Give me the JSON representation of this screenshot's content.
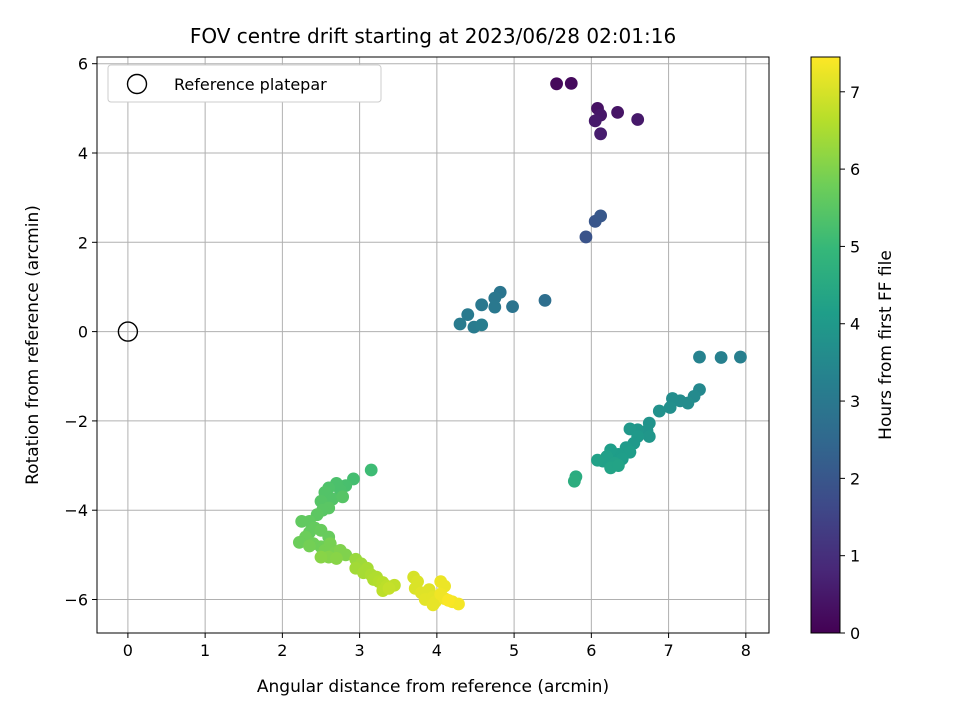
{
  "chart_data": {
    "type": "scatter",
    "title": "FOV centre drift starting at 2023/06/28 02:01:16",
    "xlabel": "Angular distance from reference (arcmin)",
    "ylabel": "Rotation from reference (arcmin)",
    "xlim": [
      -0.4,
      8.3
    ],
    "ylim": [
      -6.75,
      6.15
    ],
    "xticks": [
      0,
      1,
      2,
      3,
      4,
      5,
      6,
      7,
      8
    ],
    "yticks": [
      -6,
      -4,
      -2,
      0,
      2,
      4,
      6
    ],
    "grid": true,
    "legend": {
      "position": "top-left",
      "entries": [
        "Reference platepar"
      ]
    },
    "reference_point": {
      "x": 0,
      "y": 0
    },
    "colorbar": {
      "label": "Hours from first FF file",
      "colormap": "viridis",
      "range": [
        0,
        7.45
      ],
      "ticks": [
        0,
        1,
        2,
        3,
        4,
        5,
        6,
        7
      ]
    },
    "points": [
      {
        "x": 5.55,
        "y": 5.55,
        "t": 0.15
      },
      {
        "x": 5.74,
        "y": 5.56,
        "t": 0.2
      },
      {
        "x": 6.08,
        "y": 5.0,
        "t": 0.35
      },
      {
        "x": 6.34,
        "y": 4.91,
        "t": 0.4
      },
      {
        "x": 6.12,
        "y": 4.85,
        "t": 0.45
      },
      {
        "x": 6.05,
        "y": 4.72,
        "t": 0.5
      },
      {
        "x": 6.6,
        "y": 4.75,
        "t": 0.5
      },
      {
        "x": 6.12,
        "y": 4.43,
        "t": 0.6
      },
      {
        "x": 5.93,
        "y": 2.12,
        "t": 1.9
      },
      {
        "x": 6.05,
        "y": 2.47,
        "t": 2.0
      },
      {
        "x": 6.12,
        "y": 2.59,
        "t": 2.05
      },
      {
        "x": 5.4,
        "y": 0.7,
        "t": 2.7
      },
      {
        "x": 4.98,
        "y": 0.56,
        "t": 2.85
      },
      {
        "x": 4.82,
        "y": 0.88,
        "t": 2.9
      },
      {
        "x": 4.75,
        "y": 0.75,
        "t": 2.95
      },
      {
        "x": 4.58,
        "y": 0.6,
        "t": 3.0
      },
      {
        "x": 4.75,
        "y": 0.55,
        "t": 3.0
      },
      {
        "x": 4.4,
        "y": 0.38,
        "t": 3.05
      },
      {
        "x": 4.3,
        "y": 0.17,
        "t": 3.1
      },
      {
        "x": 4.48,
        "y": 0.1,
        "t": 3.1
      },
      {
        "x": 4.58,
        "y": 0.15,
        "t": 3.15
      },
      {
        "x": 7.93,
        "y": -0.57,
        "t": 3.2
      },
      {
        "x": 7.68,
        "y": -0.58,
        "t": 3.25
      },
      {
        "x": 7.4,
        "y": -0.57,
        "t": 3.3
      },
      {
        "x": 7.4,
        "y": -1.3,
        "t": 3.5
      },
      {
        "x": 7.33,
        "y": -1.45,
        "t": 3.55
      },
      {
        "x": 7.25,
        "y": -1.6,
        "t": 3.6
      },
      {
        "x": 7.15,
        "y": -1.55,
        "t": 3.6
      },
      {
        "x": 7.05,
        "y": -1.5,
        "t": 3.65
      },
      {
        "x": 7.02,
        "y": -1.7,
        "t": 3.7
      },
      {
        "x": 6.88,
        "y": -1.78,
        "t": 3.75
      },
      {
        "x": 6.75,
        "y": -2.05,
        "t": 3.8
      },
      {
        "x": 6.72,
        "y": -2.22,
        "t": 3.85
      },
      {
        "x": 6.75,
        "y": -2.35,
        "t": 3.9
      },
      {
        "x": 6.6,
        "y": -2.2,
        "t": 3.9
      },
      {
        "x": 6.5,
        "y": -2.18,
        "t": 3.95
      },
      {
        "x": 6.6,
        "y": -2.35,
        "t": 4.0
      },
      {
        "x": 6.55,
        "y": -2.5,
        "t": 4.0
      },
      {
        "x": 6.45,
        "y": -2.6,
        "t": 4.05
      },
      {
        "x": 6.5,
        "y": -2.7,
        "t": 4.1
      },
      {
        "x": 6.35,
        "y": -2.75,
        "t": 4.1
      },
      {
        "x": 6.4,
        "y": -2.85,
        "t": 4.15
      },
      {
        "x": 6.25,
        "y": -2.65,
        "t": 4.15
      },
      {
        "x": 6.2,
        "y": -2.8,
        "t": 4.2
      },
      {
        "x": 6.15,
        "y": -2.9,
        "t": 4.2
      },
      {
        "x": 6.08,
        "y": -2.88,
        "t": 4.25
      },
      {
        "x": 6.3,
        "y": -2.95,
        "t": 4.25
      },
      {
        "x": 6.25,
        "y": -3.05,
        "t": 4.3
      },
      {
        "x": 6.35,
        "y": -3.0,
        "t": 4.3
      },
      {
        "x": 5.8,
        "y": -3.25,
        "t": 4.6
      },
      {
        "x": 5.78,
        "y": -3.35,
        "t": 4.65
      },
      {
        "x": 3.15,
        "y": -3.1,
        "t": 5.1
      },
      {
        "x": 2.92,
        "y": -3.3,
        "t": 5.2
      },
      {
        "x": 2.82,
        "y": -3.45,
        "t": 5.25
      },
      {
        "x": 2.75,
        "y": -3.55,
        "t": 5.3
      },
      {
        "x": 2.7,
        "y": -3.4,
        "t": 5.3
      },
      {
        "x": 2.6,
        "y": -3.5,
        "t": 5.35
      },
      {
        "x": 2.55,
        "y": -3.6,
        "t": 5.4
      },
      {
        "x": 2.65,
        "y": -3.75,
        "t": 5.4
      },
      {
        "x": 2.78,
        "y": -3.7,
        "t": 5.45
      },
      {
        "x": 2.5,
        "y": -3.8,
        "t": 5.45
      },
      {
        "x": 2.6,
        "y": -3.95,
        "t": 5.5
      },
      {
        "x": 2.52,
        "y": -4.0,
        "t": 5.5
      },
      {
        "x": 2.45,
        "y": -4.1,
        "t": 5.55
      },
      {
        "x": 2.35,
        "y": -4.25,
        "t": 5.6
      },
      {
        "x": 2.25,
        "y": -4.25,
        "t": 5.6
      },
      {
        "x": 2.42,
        "y": -4.4,
        "t": 5.65
      },
      {
        "x": 2.35,
        "y": -4.5,
        "t": 5.65
      },
      {
        "x": 2.5,
        "y": -4.45,
        "t": 5.7
      },
      {
        "x": 2.6,
        "y": -4.6,
        "t": 5.7
      },
      {
        "x": 2.3,
        "y": -4.6,
        "t": 5.75
      },
      {
        "x": 2.22,
        "y": -4.72,
        "t": 5.75
      },
      {
        "x": 2.4,
        "y": -4.75,
        "t": 5.8
      },
      {
        "x": 2.5,
        "y": -4.82,
        "t": 5.8
      },
      {
        "x": 2.35,
        "y": -4.8,
        "t": 5.85
      },
      {
        "x": 2.55,
        "y": -4.9,
        "t": 5.9
      },
      {
        "x": 2.62,
        "y": -4.75,
        "t": 5.9
      },
      {
        "x": 2.68,
        "y": -4.95,
        "t": 5.95
      },
      {
        "x": 2.75,
        "y": -4.9,
        "t": 6.0
      },
      {
        "x": 2.82,
        "y": -5.0,
        "t": 6.0
      },
      {
        "x": 2.6,
        "y": -5.05,
        "t": 6.05
      },
      {
        "x": 2.5,
        "y": -5.05,
        "t": 6.1
      },
      {
        "x": 2.7,
        "y": -5.08,
        "t": 6.1
      },
      {
        "x": 2.95,
        "y": -5.1,
        "t": 6.3
      },
      {
        "x": 3.02,
        "y": -5.2,
        "t": 6.35
      },
      {
        "x": 2.95,
        "y": -5.3,
        "t": 6.4
      },
      {
        "x": 3.1,
        "y": -5.3,
        "t": 6.45
      },
      {
        "x": 3.05,
        "y": -5.4,
        "t": 6.45
      },
      {
        "x": 3.15,
        "y": -5.45,
        "t": 6.5
      },
      {
        "x": 3.18,
        "y": -5.55,
        "t": 6.55
      },
      {
        "x": 3.22,
        "y": -5.5,
        "t": 6.55
      },
      {
        "x": 3.25,
        "y": -5.6,
        "t": 6.6
      },
      {
        "x": 3.3,
        "y": -5.62,
        "t": 6.65
      },
      {
        "x": 3.35,
        "y": -5.7,
        "t": 6.7
      },
      {
        "x": 3.3,
        "y": -5.8,
        "t": 6.7
      },
      {
        "x": 3.45,
        "y": -5.68,
        "t": 6.75
      },
      {
        "x": 3.38,
        "y": -5.75,
        "t": 6.8
      },
      {
        "x": 3.7,
        "y": -5.5,
        "t": 7.0
      },
      {
        "x": 3.75,
        "y": -5.6,
        "t": 7.05
      },
      {
        "x": 3.72,
        "y": -5.75,
        "t": 7.05
      },
      {
        "x": 3.8,
        "y": -5.85,
        "t": 7.1
      },
      {
        "x": 3.9,
        "y": -5.78,
        "t": 7.1
      },
      {
        "x": 3.85,
        "y": -6.0,
        "t": 7.15
      },
      {
        "x": 3.95,
        "y": -5.95,
        "t": 7.15
      },
      {
        "x": 3.98,
        "y": -6.05,
        "t": 7.2
      },
      {
        "x": 3.95,
        "y": -6.12,
        "t": 7.2
      },
      {
        "x": 4.05,
        "y": -5.6,
        "t": 7.25
      },
      {
        "x": 4.1,
        "y": -5.7,
        "t": 7.25
      },
      {
        "x": 4.05,
        "y": -5.88,
        "t": 7.3
      },
      {
        "x": 4.1,
        "y": -5.98,
        "t": 7.3
      },
      {
        "x": 4.2,
        "y": -6.05,
        "t": 7.35
      },
      {
        "x": 4.28,
        "y": -6.1,
        "t": 7.35
      },
      {
        "x": 4.15,
        "y": -6.02,
        "t": 7.4
      }
    ]
  }
}
